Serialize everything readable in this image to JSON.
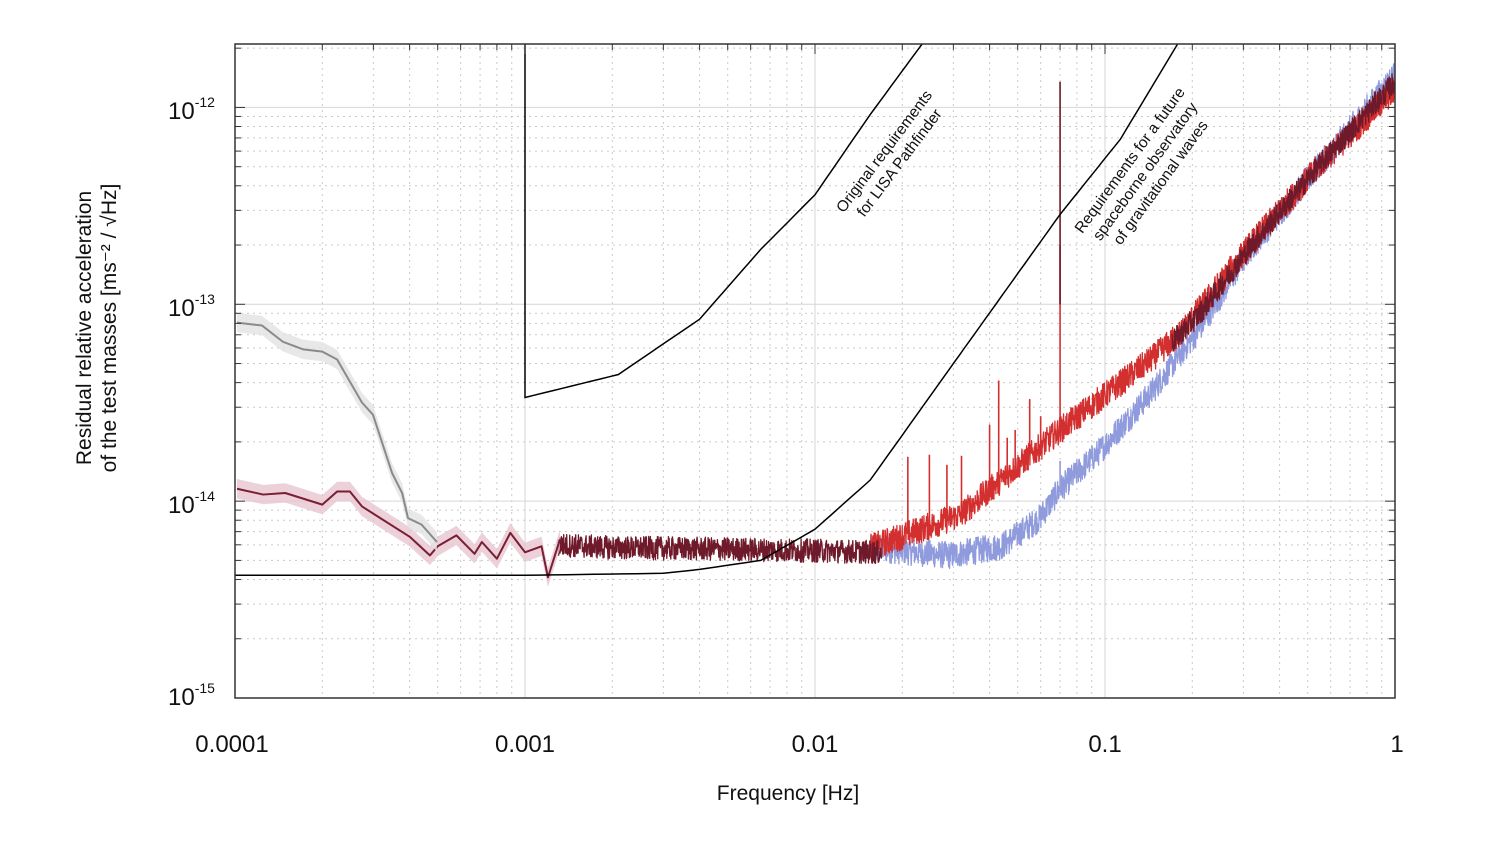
{
  "chart_data": {
    "type": "line",
    "title": "",
    "xlabel": "Frequency [Hz]",
    "ylabel_lines": [
      "Residual relative acceleration",
      "of the test masses [ms⁻² / √Hz]"
    ],
    "xscale": "log",
    "yscale": "log",
    "xlim": [
      0.0001,
      1
    ],
    "ylim": [
      1e-15,
      2.1e-12
    ],
    "grid": true,
    "x_ticks": [
      {
        "value": 0.0001,
        "label": "0.0001"
      },
      {
        "value": 0.001,
        "label": "0.001"
      },
      {
        "value": 0.01,
        "label": "0.01"
      },
      {
        "value": 0.1,
        "label": "0.1"
      },
      {
        "value": 1,
        "label": "1"
      }
    ],
    "y_ticks": [
      {
        "value": 1e-12,
        "base": "10",
        "exp": "-12"
      },
      {
        "value": 1e-13,
        "base": "10",
        "exp": "-13"
      },
      {
        "value": 1e-14,
        "base": "10",
        "exp": "-14"
      },
      {
        "value": 1e-15,
        "base": "10",
        "exp": "-15"
      }
    ],
    "annotations": [
      {
        "lines": [
          "Original requirements",
          "for LISA Pathfinder"
        ]
      },
      {
        "lines": [
          "Requirements for a future",
          "spaceborne observatory",
          "of gravitational waves"
        ]
      }
    ],
    "series": [
      {
        "key": "blue",
        "color": "#8f9bdc",
        "jitter_dex": 0.07,
        "x": [
          0.0155,
          0.029,
          0.044,
          0.059,
          0.07,
          0.096,
          0.143,
          0.21,
          0.316,
          0.55,
          1.0
        ],
        "y": [
          5.8e-15,
          5.3e-15,
          5.9e-15,
          8.1e-15,
          1.15e-14,
          1.8e-14,
          3.5e-14,
          7.4e-14,
          1.9e-13,
          5.1e-13,
          1.47e-12
        ],
        "spikes": [
          [
            0.07,
            1.6e-14
          ]
        ]
      },
      {
        "key": "red",
        "color": "#d42f2f",
        "jitter_dex": 0.07,
        "x": [
          0.0155,
          0.0316,
          0.07,
          0.143,
          0.18,
          0.316,
          0.55,
          0.96,
          1.0
        ],
        "y": [
          5.8e-15,
          8.5e-15,
          2.3e-14,
          5.2e-14,
          7e-14,
          2e-13,
          5.1e-13,
          1.16e-12,
          1.2e-12
        ],
        "spikes": [
          [
            0.0209,
            1.68e-14
          ],
          [
            0.0248,
            1.72e-14
          ],
          [
            0.0285,
            1.53e-14
          ],
          [
            0.032,
            1.7e-14
          ],
          [
            0.04,
            2.45e-14
          ],
          [
            0.043,
            4.1e-14
          ],
          [
            0.046,
            2.1e-14
          ],
          [
            0.049,
            2.3e-14
          ],
          [
            0.055,
            3.3e-14
          ],
          [
            0.06,
            2.7e-14
          ],
          [
            0.07,
            2e-13
          ]
        ]
      },
      {
        "key": "dark-red-noisy",
        "color": "#6e1a2a",
        "jitter_dex": 0.06,
        "x": [
          0.0013,
          0.002,
          0.005,
          0.01,
          0.017
        ],
        "y": [
          6e-15,
          5.8e-15,
          5.7e-15,
          5.6e-15,
          5.5e-15
        ],
        "spikes": []
      },
      {
        "key": "dark-red-high",
        "color": "#6e1a2a",
        "jitter_dex": 0.06,
        "x": [
          0.17,
          0.21,
          0.316,
          0.55,
          1.0
        ],
        "y": [
          6.4e-14,
          8.8e-14,
          1.95e-13,
          5.1e-13,
          1.35e-12
        ],
        "spikes": [
          [
            0.07,
            1e-13
          ]
        ]
      },
      {
        "key": "dark-red-low",
        "color": "#7a1f33",
        "band_color": "#e7c6d1",
        "jitter_dex": 0,
        "x": [
          0.0001016,
          0.000125,
          0.000149,
          0.0002,
          0.000225,
          0.000249,
          0.000274,
          0.0004,
          0.00047,
          0.0005,
          0.00058,
          0.00067,
          0.00071,
          0.0008,
          0.00089,
          0.001,
          0.00114,
          0.0012,
          0.00132
        ],
        "y": [
          1.156e-14,
          1.08e-14,
          1.1e-14,
          9.6e-15,
          1.12e-14,
          1.12e-14,
          9.4e-15,
          6.6e-15,
          5.3e-15,
          5.9e-15,
          6.7e-15,
          5.4e-15,
          6.2e-15,
          5.1e-15,
          6.9e-15,
          5.5e-15,
          5.9e-15,
          4.1e-15,
          6.4e-15
        ]
      },
      {
        "key": "gray",
        "color": "#8a8a8a",
        "band_color": "#e2e2e2",
        "jitter_dex": 0,
        "x": [
          0.0001016,
          0.000124,
          0.000146,
          0.000172,
          0.0002,
          0.000225,
          0.000274,
          0.000299,
          0.000348,
          0.000377,
          0.000395,
          0.00044,
          0.000497
        ],
        "y": [
          8.07e-14,
          7.8e-14,
          6.46e-14,
          5.9e-14,
          5.75e-14,
          5.24e-14,
          3.17e-14,
          2.75e-14,
          1.39e-14,
          1.1e-14,
          8.2e-15,
          7.6e-15,
          6.2e-15
        ]
      }
    ],
    "requirements": [
      {
        "key": "lisa-pathfinder",
        "color": "#000000",
        "x": [
          0.001,
          0.001,
          0.0021,
          0.004,
          0.0065,
          0.01,
          0.0155,
          0.0234
        ],
        "y": [
          2.1e-12,
          3.36e-14,
          4.4e-14,
          8.4e-14,
          1.9e-13,
          3.6e-13,
          9.2e-13,
          2.1e-12
        ]
      },
      {
        "key": "gravitational-wave-observatory",
        "color": "#000000",
        "x": [
          0.0001,
          0.001,
          0.003,
          0.004,
          0.0065,
          0.01,
          0.0155,
          0.029,
          0.044,
          0.07,
          0.113,
          0.178
        ],
        "y": [
          4.2e-15,
          4.2e-15,
          4.3e-15,
          4.5e-15,
          5e-15,
          7.2e-15,
          1.28e-14,
          4.66e-14,
          1.1e-13,
          2.86e-13,
          6.9e-13,
          2.1e-12
        ]
      }
    ]
  }
}
